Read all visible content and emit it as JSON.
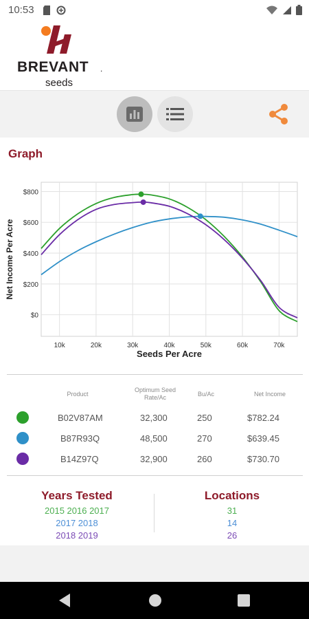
{
  "status_bar": {
    "time": "10:53",
    "left_icons": [
      "sd-card-icon",
      "data-saver-icon"
    ],
    "right_icons": [
      "wifi-icon",
      "cellular-icon",
      "battery-icon"
    ]
  },
  "brand": {
    "name": "BREVANT",
    "trademark": ".",
    "subtitle": "seeds",
    "colors": {
      "mark_orange": "#f47c20",
      "mark_red": "#8e1b2a",
      "text": "#231f20"
    }
  },
  "toolbar": {
    "graph_icon": "bar-chart-icon",
    "list_icon": "list-icon",
    "share_icon": "share-icon",
    "share_color": "#f08a3c"
  },
  "graph_section": {
    "title": "Graph"
  },
  "chart_data": {
    "type": "line",
    "xlabel": "Seeds Per Acre",
    "ylabel": "Net Income Per Acre",
    "x_ticks": [
      10000,
      20000,
      30000,
      40000,
      50000,
      60000,
      70000
    ],
    "x_tick_labels": [
      "10k",
      "20k",
      "30k",
      "40k",
      "50k",
      "60k",
      "70k"
    ],
    "y_ticks": [
      0,
      200,
      400,
      600,
      800
    ],
    "y_tick_labels": [
      "$0",
      "$200",
      "$400",
      "$600",
      "$800"
    ],
    "xlim": [
      5000,
      75000
    ],
    "ylim": [
      -140,
      860
    ],
    "grid": true,
    "series": [
      {
        "color": "#2ca02c",
        "x": [
          5000,
          10000,
          15000,
          20000,
          25000,
          30000,
          32300,
          35000,
          40000,
          45000,
          50000,
          55000,
          60000,
          65000,
          70000,
          75000
        ],
        "y": [
          430,
          560,
          655,
          722,
          762,
          780,
          782,
          778,
          752,
          697,
          617,
          509,
          375,
          214,
          27,
          -45
        ],
        "optimum": {
          "x": 32300,
          "y": 782.24
        }
      },
      {
        "color": "#2f90c8",
        "x": [
          5000,
          10000,
          15000,
          20000,
          25000,
          30000,
          35000,
          40000,
          45000,
          48500,
          50000,
          55000,
          60000,
          65000,
          70000,
          75000
        ],
        "y": [
          260,
          345,
          416,
          474,
          524,
          566,
          600,
          622,
          635,
          639,
          638,
          633,
          616,
          588,
          549,
          507
        ],
        "optimum": {
          "x": 48500,
          "y": 639.45
        }
      },
      {
        "color": "#6a2ca6",
        "x": [
          5000,
          10000,
          15000,
          20000,
          25000,
          30000,
          32900,
          35000,
          40000,
          45000,
          50000,
          55000,
          60000,
          65000,
          70000,
          75000
        ],
        "y": [
          390,
          520,
          617,
          684,
          716,
          728,
          731,
          727,
          704,
          656,
          584,
          488,
          367,
          222,
          48,
          -20
        ],
        "optimum": {
          "x": 32900,
          "y": 730.7
        }
      }
    ]
  },
  "table": {
    "headers": {
      "product": "Product",
      "optimum": "Optimum Seed Rate/Ac",
      "bu": "Bu/Ac",
      "net": "Net Income"
    },
    "rows": [
      {
        "color": "#2ca02c",
        "product": "B02V87AM",
        "rate": "32,300",
        "bu": "250",
        "net": "$782.24"
      },
      {
        "color": "#2f90c8",
        "product": "B87R93Q",
        "rate": "48,500",
        "bu": "270",
        "net": "$639.45"
      },
      {
        "color": "#6a2ca6",
        "product": "B14Z97Q",
        "rate": "32,900",
        "bu": "260",
        "net": "$730.70"
      }
    ]
  },
  "summary": {
    "years_title": "Years Tested",
    "locations_title": "Locations",
    "years": [
      {
        "text": "2015 2016 2017",
        "color": "#4caf50"
      },
      {
        "text": "2017 2018",
        "color": "#4d8fd6"
      },
      {
        "text": "2018 2019",
        "color": "#7b4bb5"
      }
    ],
    "locations": [
      {
        "text": "31",
        "color": "#4caf50"
      },
      {
        "text": "14",
        "color": "#4d8fd6"
      },
      {
        "text": "26",
        "color": "#7b4bb5"
      }
    ]
  },
  "nav": {
    "back_icon": "back-icon",
    "home_icon": "home-icon",
    "recents_icon": "recents-icon"
  }
}
